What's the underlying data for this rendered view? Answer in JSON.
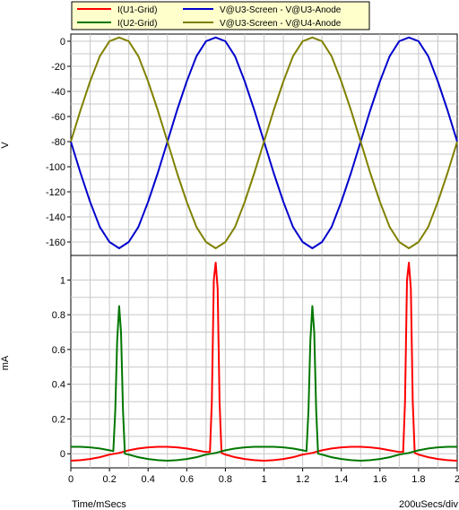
{
  "chart_data": [
    {
      "type": "line",
      "panel": "top",
      "ylabel": "V",
      "ylim": [
        -165,
        0
      ],
      "yticks": [
        0,
        -20,
        -40,
        -60,
        -80,
        -100,
        -120,
        -140,
        -160
      ],
      "xlim": [
        0,
        2
      ],
      "grid": true,
      "series": [
        {
          "name": "V@U3-Screen - V@U3-Anode",
          "color": "#0000cc",
          "x": [
            0,
            0.05,
            0.1,
            0.15,
            0.2,
            0.25,
            0.3,
            0.35,
            0.4,
            0.45,
            0.5,
            0.55,
            0.6,
            0.65,
            0.7,
            0.75,
            0.8,
            0.85,
            0.9,
            0.95,
            1.0,
            1.05,
            1.1,
            1.15,
            1.2,
            1.25,
            1.3,
            1.35,
            1.4,
            1.45,
            1.5,
            1.55,
            1.6,
            1.65,
            1.7,
            1.75,
            1.8,
            1.85,
            1.9,
            1.95,
            2.0
          ],
          "y": [
            -80,
            -105,
            -128,
            -148,
            -160,
            -165,
            -160,
            -148,
            -128,
            -105,
            -80,
            -55,
            -32,
            -12,
            0,
            3,
            0,
            -12,
            -32,
            -55,
            -80,
            -105,
            -128,
            -148,
            -160,
            -165,
            -160,
            -148,
            -128,
            -105,
            -80,
            -55,
            -32,
            -12,
            0,
            3,
            0,
            -12,
            -32,
            -55,
            -80
          ]
        },
        {
          "name": "V@U3-Screen - V@U4-Anode",
          "color": "#808000",
          "x": [
            0,
            0.05,
            0.1,
            0.15,
            0.2,
            0.25,
            0.3,
            0.35,
            0.4,
            0.45,
            0.5,
            0.55,
            0.6,
            0.65,
            0.7,
            0.75,
            0.8,
            0.85,
            0.9,
            0.95,
            1.0,
            1.05,
            1.1,
            1.15,
            1.2,
            1.25,
            1.3,
            1.35,
            1.4,
            1.45,
            1.5,
            1.55,
            1.6,
            1.65,
            1.7,
            1.75,
            1.8,
            1.85,
            1.9,
            1.95,
            2.0
          ],
          "y": [
            -80,
            -55,
            -32,
            -12,
            0,
            3,
            0,
            -12,
            -32,
            -55,
            -80,
            -105,
            -128,
            -148,
            -160,
            -165,
            -160,
            -148,
            -128,
            -105,
            -80,
            -55,
            -32,
            -12,
            0,
            3,
            0,
            -12,
            -32,
            -55,
            -80,
            -105,
            -128,
            -148,
            -160,
            -165,
            -160,
            -148,
            -128,
            -105,
            -80
          ]
        }
      ]
    },
    {
      "type": "line",
      "panel": "bottom",
      "ylabel": "mA",
      "ylim": [
        -0.04,
        1.1
      ],
      "yticks": [
        1,
        0.8,
        0.6,
        0.4,
        0.2,
        0
      ],
      "xlabel": "Time/mSecs",
      "xdiv_label": "200uSecs/div",
      "xlim": [
        0,
        2
      ],
      "xticks": [
        0,
        0.2,
        0.4,
        0.6,
        0.8,
        1,
        1.2,
        1.4,
        1.6,
        1.8,
        2
      ],
      "grid": true,
      "series": [
        {
          "name": "I(U1-Grid)",
          "color": "#ff0000",
          "x": [
            0,
            0.05,
            0.1,
            0.15,
            0.2,
            0.25,
            0.3,
            0.35,
            0.4,
            0.45,
            0.5,
            0.55,
            0.6,
            0.65,
            0.7,
            0.72,
            0.73,
            0.74,
            0.75,
            0.76,
            0.77,
            0.78,
            0.8,
            0.85,
            0.9,
            0.95,
            1.0,
            1.05,
            1.1,
            1.15,
            1.2,
            1.25,
            1.3,
            1.35,
            1.4,
            1.45,
            1.5,
            1.55,
            1.6,
            1.65,
            1.7,
            1.72,
            1.73,
            1.74,
            1.75,
            1.76,
            1.77,
            1.78,
            1.8,
            1.85,
            1.9,
            1.95,
            2.0
          ],
          "y": [
            -0.04,
            -0.037,
            -0.03,
            -0.02,
            -0.005,
            0.005,
            0.02,
            0.03,
            0.037,
            0.04,
            0.04,
            0.037,
            0.03,
            0.02,
            0.01,
            0.01,
            0.3,
            1.0,
            1.1,
            0.95,
            0.3,
            0.005,
            -0.005,
            -0.02,
            -0.03,
            -0.037,
            -0.04,
            -0.037,
            -0.03,
            -0.02,
            -0.005,
            0.005,
            0.02,
            0.03,
            0.037,
            0.04,
            0.04,
            0.037,
            0.03,
            0.02,
            0.01,
            0.01,
            0.3,
            1.0,
            1.1,
            0.95,
            0.3,
            0.005,
            -0.005,
            -0.02,
            -0.03,
            -0.037,
            -0.04
          ]
        },
        {
          "name": "I(U2-Grid)",
          "color": "#007700",
          "x": [
            0,
            0.05,
            0.1,
            0.15,
            0.2,
            0.22,
            0.23,
            0.24,
            0.25,
            0.26,
            0.27,
            0.28,
            0.3,
            0.35,
            0.4,
            0.45,
            0.5,
            0.55,
            0.6,
            0.65,
            0.7,
            0.75,
            0.8,
            0.85,
            0.9,
            0.95,
            1.0,
            1.05,
            1.1,
            1.15,
            1.2,
            1.22,
            1.23,
            1.24,
            1.25,
            1.26,
            1.27,
            1.28,
            1.3,
            1.35,
            1.4,
            1.45,
            1.5,
            1.55,
            1.6,
            1.65,
            1.7,
            1.75,
            1.8,
            1.85,
            1.9,
            1.95,
            2.0
          ],
          "y": [
            0.04,
            0.04,
            0.037,
            0.03,
            0.02,
            0.015,
            0.25,
            0.65,
            0.85,
            0.7,
            0.25,
            0.0,
            -0.005,
            -0.02,
            -0.03,
            -0.037,
            -0.04,
            -0.037,
            -0.03,
            -0.02,
            -0.005,
            0.005,
            0.02,
            0.03,
            0.037,
            0.04,
            0.04,
            0.04,
            0.037,
            0.03,
            0.02,
            0.015,
            0.25,
            0.65,
            0.85,
            0.7,
            0.25,
            0.0,
            -0.005,
            -0.02,
            -0.03,
            -0.037,
            -0.04,
            -0.037,
            -0.03,
            -0.02,
            -0.005,
            0.005,
            0.02,
            0.03,
            0.037,
            0.04,
            0.04
          ]
        }
      ]
    }
  ],
  "legend": {
    "placement": "top",
    "background": "#ffffcc",
    "entries": [
      {
        "label": "I(U1-Grid)",
        "color": "#ff0000"
      },
      {
        "label": "V@U3-Screen - V@U3-Anode",
        "color": "#0000cc"
      },
      {
        "label": "I(U2-Grid)",
        "color": "#007700"
      },
      {
        "label": "V@U3-Screen - V@U4-Anode",
        "color": "#808000"
      }
    ]
  }
}
